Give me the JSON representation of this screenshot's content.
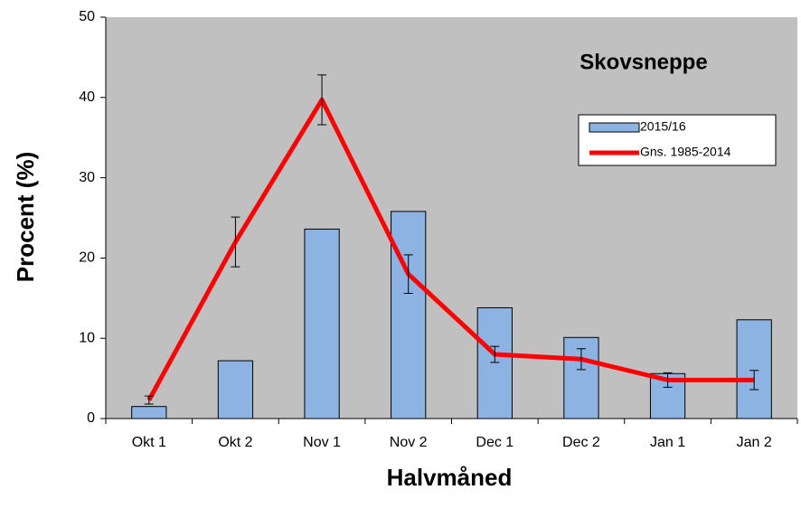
{
  "chart_data": {
    "type": "bar",
    "title": "Skovsneppe",
    "xlabel": "Halvmåned",
    "ylabel": "Procent (%)",
    "categories": [
      "Okt 1",
      "Okt 2",
      "Nov 1",
      "Nov 2",
      "Dec 1",
      "Dec 2",
      "Jan 1",
      "Jan 2"
    ],
    "series": [
      {
        "name": "2015/16",
        "type": "bar",
        "color": "#8db3e2",
        "values": [
          1.5,
          7.2,
          23.6,
          25.8,
          13.8,
          10.1,
          5.6,
          12.3
        ]
      },
      {
        "name": "Gns. 1985-2014",
        "type": "line",
        "color": "#ff0000",
        "values": [
          2.3,
          22.0,
          39.7,
          18.0,
          8.0,
          7.4,
          4.8,
          4.8
        ],
        "errors": [
          0.5,
          3.1,
          3.1,
          2.4,
          1.0,
          1.3,
          0.9,
          1.2
        ]
      }
    ],
    "ylim": [
      0,
      50
    ],
    "yticks": [
      0,
      10,
      20,
      30,
      40,
      50
    ],
    "plot_background": "#c0c0c0",
    "legend": "upper right"
  }
}
